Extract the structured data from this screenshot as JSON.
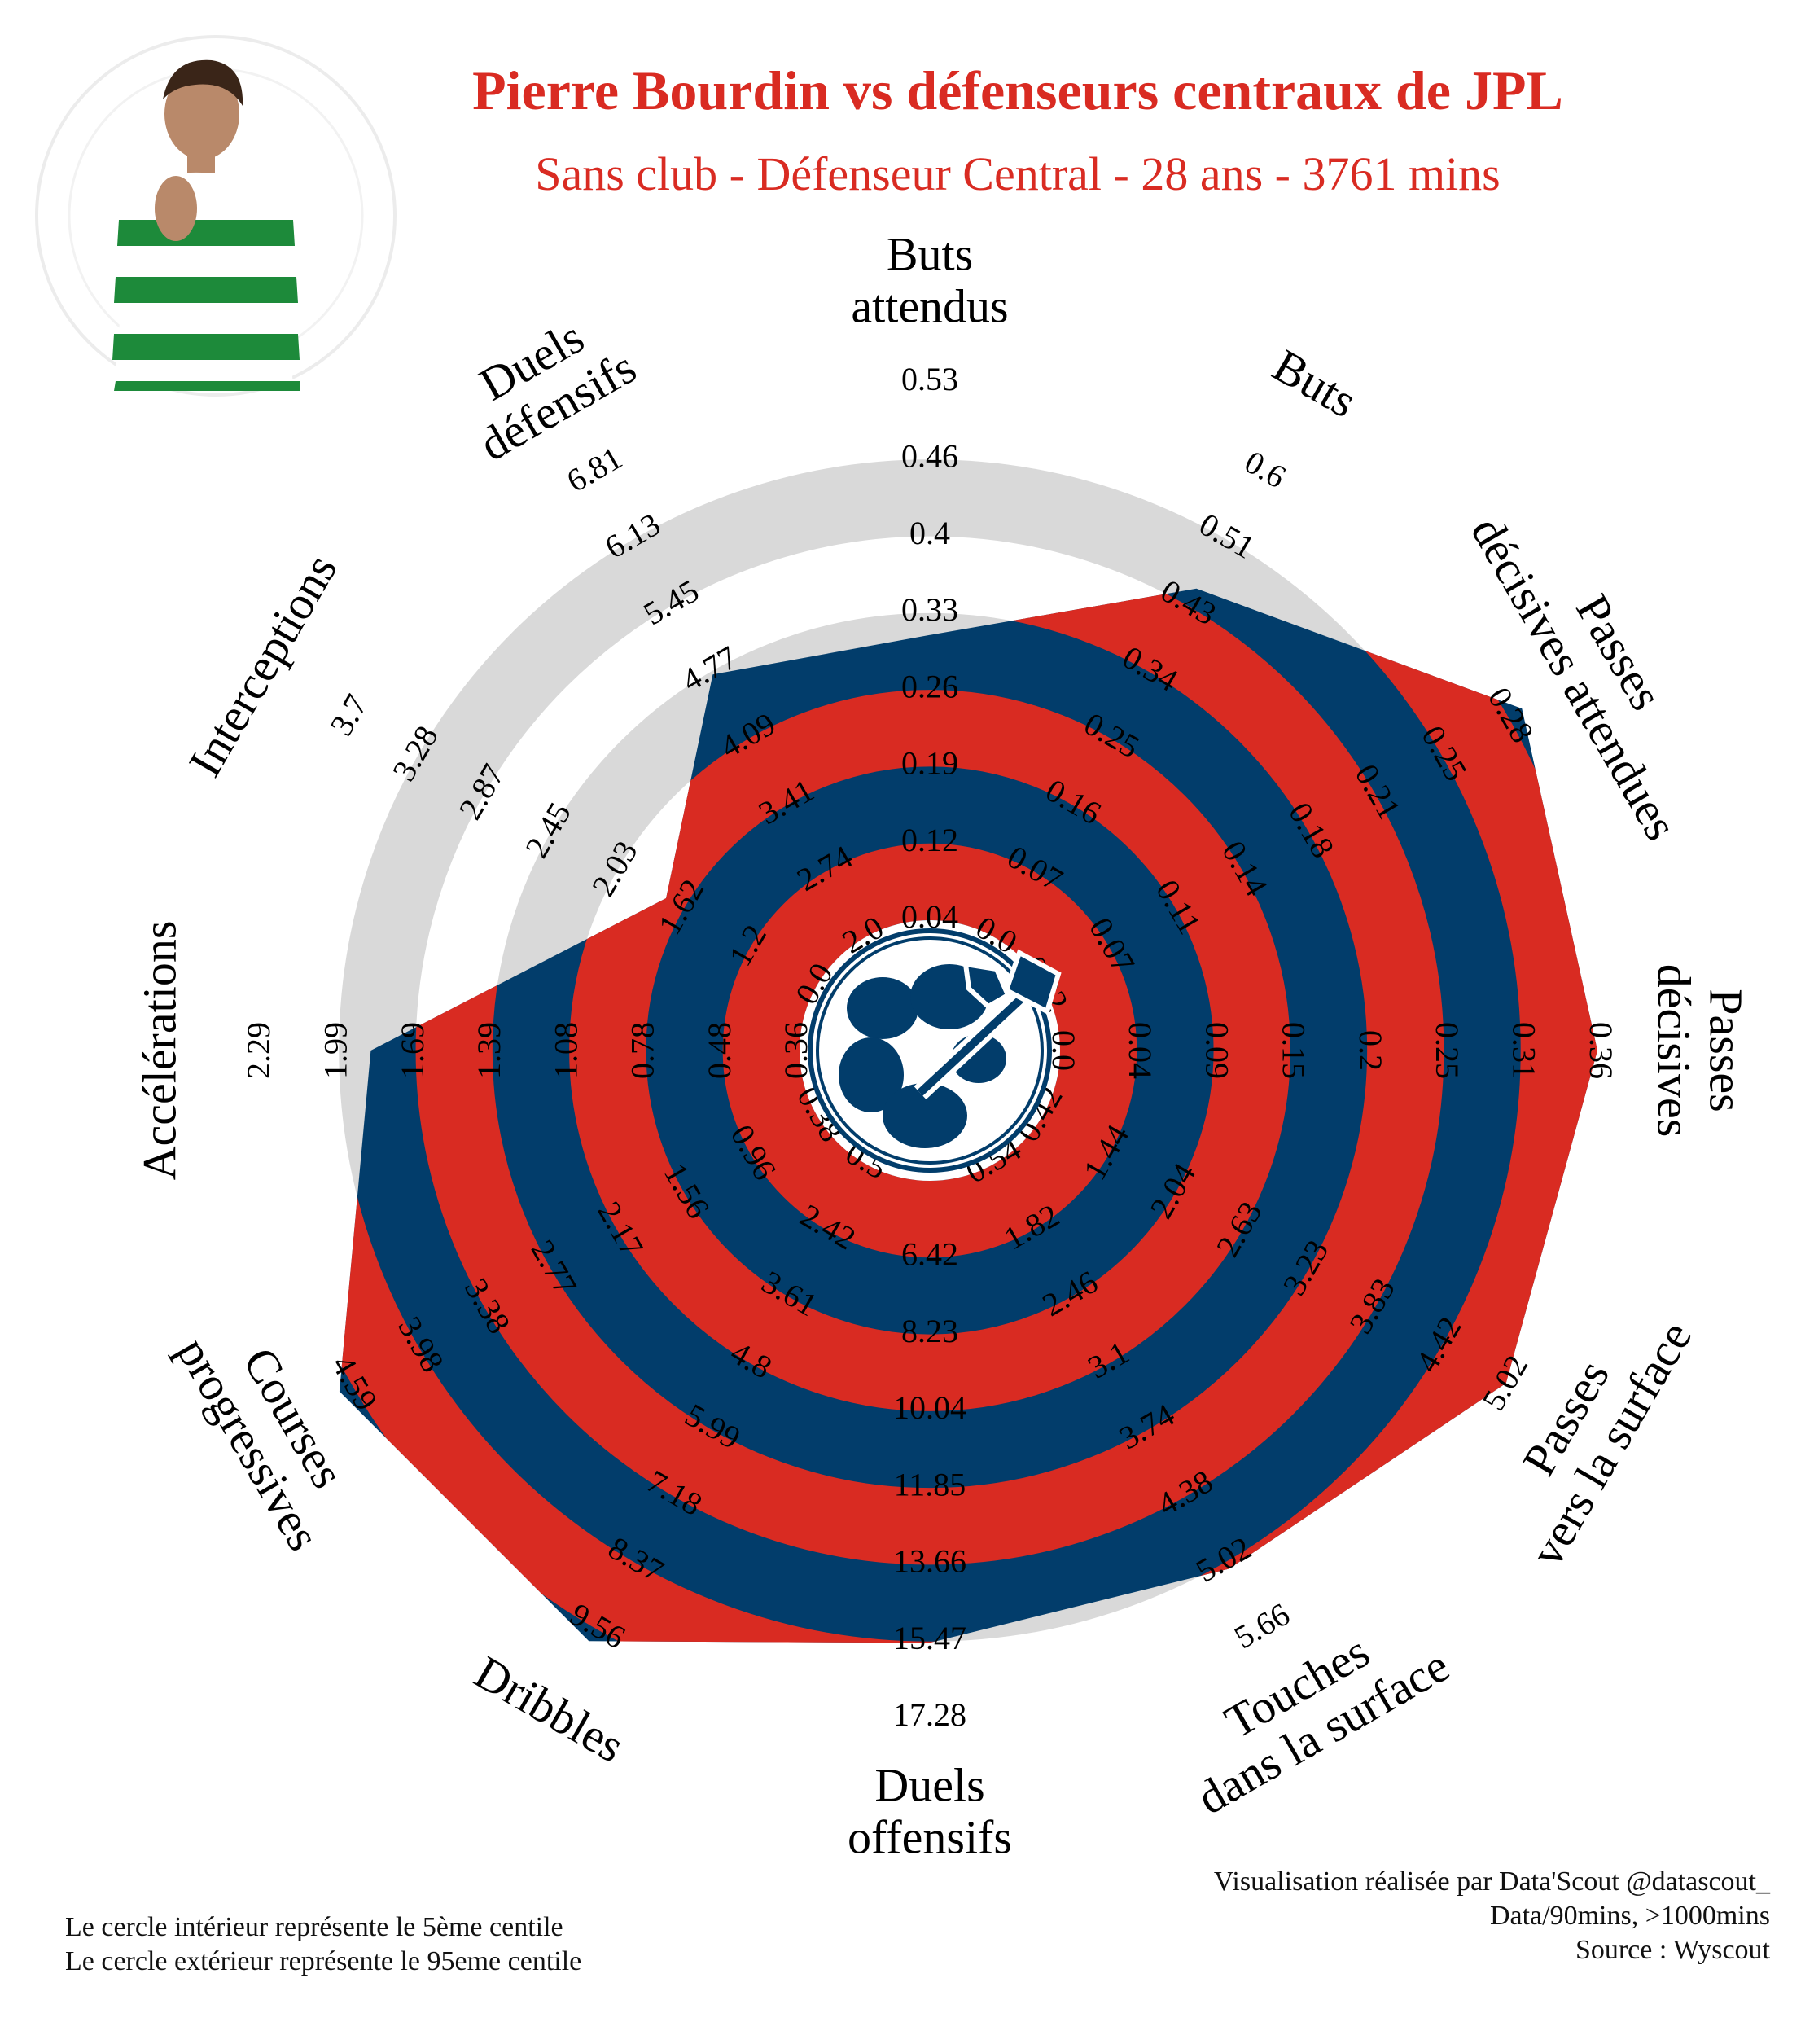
{
  "header": {
    "title": "Pierre Bourdin vs défenseurs centraux de JPL",
    "subtitle": "Sans club - Défenseur Central - 28 ans - 3761 mins",
    "title_color": "#d92b22"
  },
  "footer": {
    "left_line1": "Le cercle intérieur représente le 5ème centile",
    "left_line2": "Le cercle extérieur représente le 95eme centile",
    "right_line1": "Visualisation réalisée par Data'Scout @datascout_",
    "right_line2": "Data/90mins, >1000mins",
    "right_line3": "Source : Wyscout"
  },
  "colors": {
    "player": "#023d6b",
    "band": "#d92b22",
    "ring": "#d9d9d9",
    "logo": "#023d6b"
  },
  "icons": [
    "player-photo-icon",
    "club-crest-icon"
  ],
  "chart_data": {
    "type": "radar",
    "title": "Pierre Bourdin vs défenseurs centraux de JPL",
    "subtitle": "Sans club - Défenseur Central - 28 ans - 3761 mins",
    "scale_note": "Le cercle intérieur représente le 5ème centile, le cercle extérieur le 95eme centile",
    "parameters": [
      {
        "label": [
          "Buts",
          "attendus"
        ],
        "ticks": [
          "0.04",
          "0.12",
          "0.19",
          "0.26",
          "0.33",
          "0.4",
          "0.46",
          "0.53"
        ],
        "min": 0.04,
        "max": 0.53,
        "value": 0.3
      },
      {
        "label": [
          "Buts"
        ],
        "ticks": [
          "0.0",
          "0.07",
          "0.16",
          "0.25",
          "0.34",
          "0.43",
          "0.51",
          "0.6"
        ],
        "min": 0.0,
        "max": 0.6,
        "value": 0.45
      },
      {
        "label": [
          "Passes",
          "décisives attendues"
        ],
        "ticks": [
          "0.02",
          "0.07",
          "0.11",
          "0.14",
          "0.18",
          "0.21",
          "0.25",
          "0.28"
        ],
        "min": 0.02,
        "max": 0.28,
        "value": 0.29
      },
      {
        "label": [
          "Passes",
          "décisives"
        ],
        "ticks": [
          "0.0",
          "0.04",
          "0.09",
          "0.15",
          "0.2",
          "0.25",
          "0.31",
          "0.36"
        ],
        "min": 0.0,
        "max": 0.36,
        "value": 0.36
      },
      {
        "label": [
          "Passes",
          "vers la surface"
        ],
        "ticks": [
          "0.42",
          "1.44",
          "2.04",
          "2.63",
          "3.23",
          "3.83",
          "4.42",
          "5.02"
        ],
        "min": 0.42,
        "max": 5.02,
        "value": 5.0
      },
      {
        "label": [
          "Touches",
          "dans la surface"
        ],
        "ticks": [
          "0.54",
          "1.82",
          "2.46",
          "3.1",
          "3.74",
          "4.38",
          "5.02",
          "5.66"
        ],
        "min": 0.54,
        "max": 5.66,
        "value": 5.0
      },
      {
        "label": [
          "Duels",
          "offensifs"
        ],
        "ticks": [
          "6.42",
          "8.23",
          "10.04",
          "11.85",
          "13.66",
          "15.47",
          "17.28"
        ],
        "min": 4.61,
        "max": 17.28,
        "value": 15.5
      },
      {
        "label": [
          "Dribbles"
        ],
        "ticks": [
          "0.5",
          "2.42",
          "3.61",
          "4.8",
          "5.99",
          "7.18",
          "8.37",
          "9.56"
        ],
        "min": 0.5,
        "max": 9.56,
        "value": 9.8
      },
      {
        "label": [
          "Courses",
          "progressives"
        ],
        "ticks": [
          "0.38",
          "0.96",
          "1.56",
          "2.17",
          "2.77",
          "3.38",
          "3.98",
          "4.59"
        ],
        "min": 0.38,
        "max": 4.59,
        "value": 4.7
      },
      {
        "label": [
          "Accélérations"
        ],
        "ticks": [
          "0.36",
          "0.48",
          "0.78",
          "1.08",
          "1.39",
          "1.69",
          "1.99",
          "2.29"
        ],
        "min": 0.36,
        "max": 2.29,
        "value": 1.9
      },
      {
        "label": [
          "Interceptions"
        ],
        "ticks": [
          "0.0",
          "1.2",
          "1.62",
          "2.03",
          "2.45",
          "2.87",
          "3.28",
          "3.7"
        ],
        "min": 0.0,
        "max": 3.7,
        "value": 1.2
      },
      {
        "label": [
          "Duels",
          "défensifs"
        ],
        "ticks": [
          "2.0",
          "2.74",
          "3.41",
          "4.09",
          "4.77",
          "5.45",
          "6.13",
          "6.81"
        ],
        "min": 2.0,
        "max": 6.81,
        "value": 4.72
      }
    ]
  }
}
